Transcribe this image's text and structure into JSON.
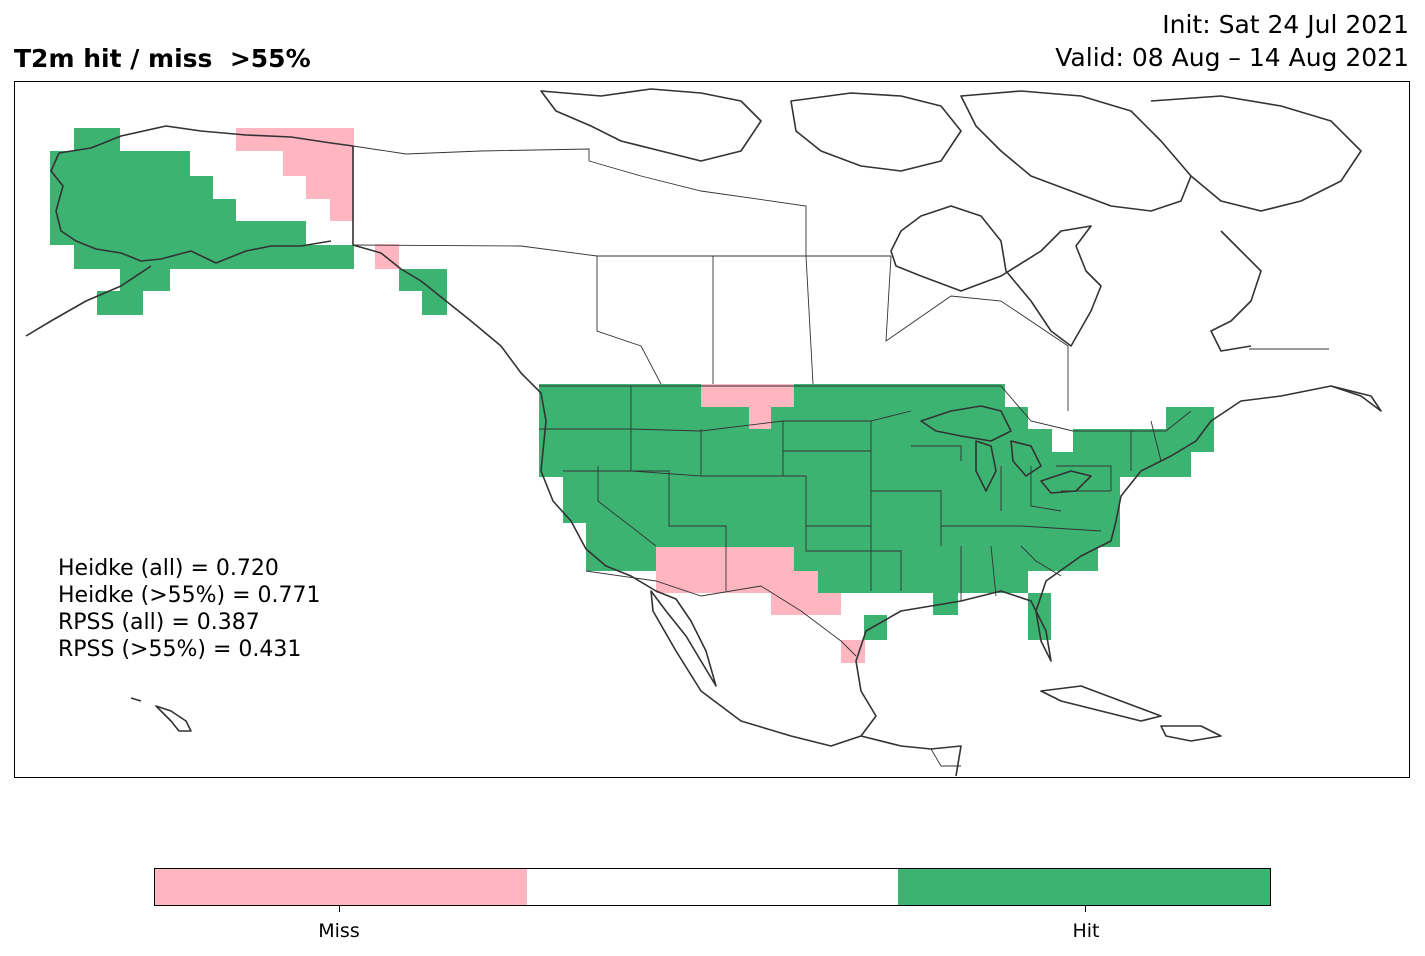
{
  "title": "T2m hit / miss  >55%",
  "init": "Init: Sat 24 Jul 2021",
  "valid": "Valid: 08 Aug – 14 Aug 2021",
  "scores": [
    "Heidke (all) = 0.720",
    "Heidke (>55%) = 0.771",
    "RPSS (all) = 0.387",
    "RPSS (>55%) = 0.431"
  ],
  "colorbar": {
    "colors": {
      "miss": "#ffb6c1",
      "neutral": "#ffffff",
      "hit": "#3cb371"
    },
    "labels": {
      "miss": "Miss",
      "hit": "Hit"
    }
  },
  "map": {
    "region": "North America",
    "hit_regions": [
      "Alaska (west and interior)",
      "Southeast Alaska panhandle",
      "Contiguous United States (most)",
      "Southern Florida",
      "Texas coast"
    ],
    "miss_regions": [
      "Northeast Alaska / Yukon border",
      "Northern Montana",
      "Southern Arizona / New Mexico",
      "West Texas",
      "South Texas tip"
    ]
  }
}
